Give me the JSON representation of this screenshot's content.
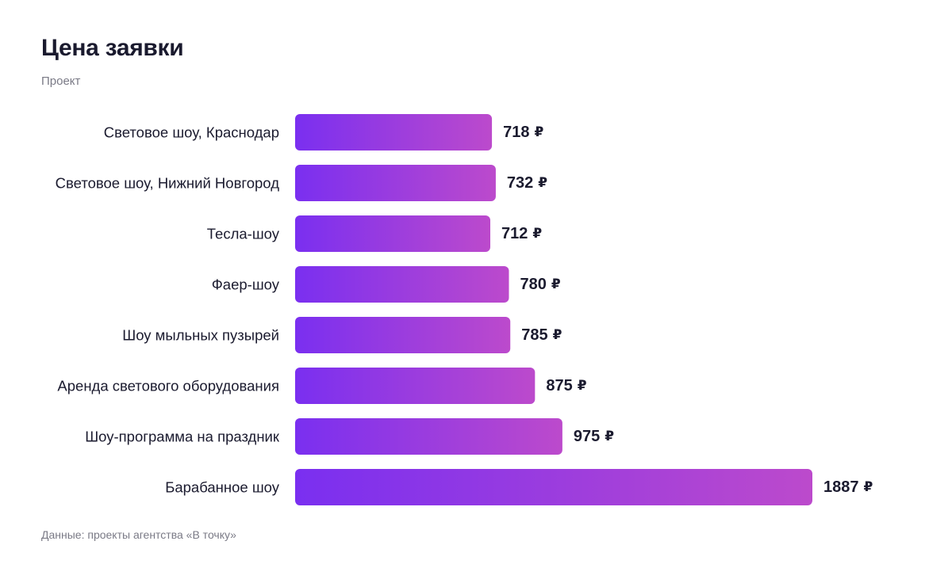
{
  "header": {
    "title": "Цена заявки",
    "subtitle": "Проект"
  },
  "footer": {
    "source": "Данные: проекты агентства «В точку»"
  },
  "colors": {
    "bar_start": "#7a2ff0",
    "bar_end": "#bc4acc",
    "text": "#1b1b2f",
    "muted": "#7a7a86"
  },
  "chart_data": {
    "type": "bar",
    "orientation": "horizontal",
    "title": "Цена заявки",
    "subtitle": "Проект",
    "categories": [
      "Световое шоу, Краснодар",
      "Световое шоу, Нижний Новгород",
      "Тесла-шоу",
      "Фаер-шоу",
      "Шоу мыльных пузырей",
      "Аренда светового оборудования",
      "Шоу-программа на праздник",
      "Барабанное шоу"
    ],
    "values": [
      718,
      732,
      712,
      780,
      785,
      875,
      975,
      1887
    ],
    "value_labels": [
      "718",
      "732",
      "712",
      "780",
      "785",
      "875",
      "975",
      "1887"
    ],
    "unit": "₽",
    "xlim": [
      0,
      1887
    ],
    "grid": false,
    "legend": "none"
  }
}
